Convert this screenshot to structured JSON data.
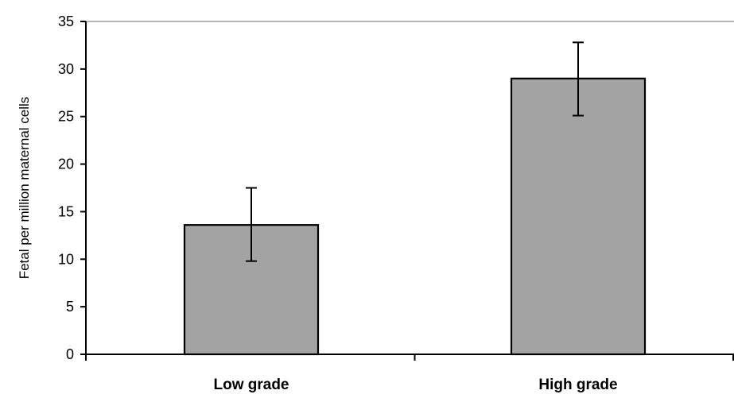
{
  "chart_data": {
    "type": "bar",
    "categories": [
      "Low grade",
      "High grade"
    ],
    "values": [
      13.6,
      29.0
    ],
    "error_bars": [
      {
        "low": 9.8,
        "high": 17.5
      },
      {
        "low": 25.1,
        "high": 32.8
      }
    ],
    "title": "",
    "xlabel": "",
    "ylabel": "Fetal per million maternal cells",
    "ylim": [
      0,
      35
    ],
    "yticks": [
      0,
      5,
      10,
      15,
      20,
      25,
      30,
      35
    ],
    "grid": false,
    "legend": "none",
    "colors": {
      "bar_fill": "#a3a3a3",
      "bar_stroke": "#000000",
      "axis": "#000000",
      "frame": "#8a8a8a"
    }
  }
}
